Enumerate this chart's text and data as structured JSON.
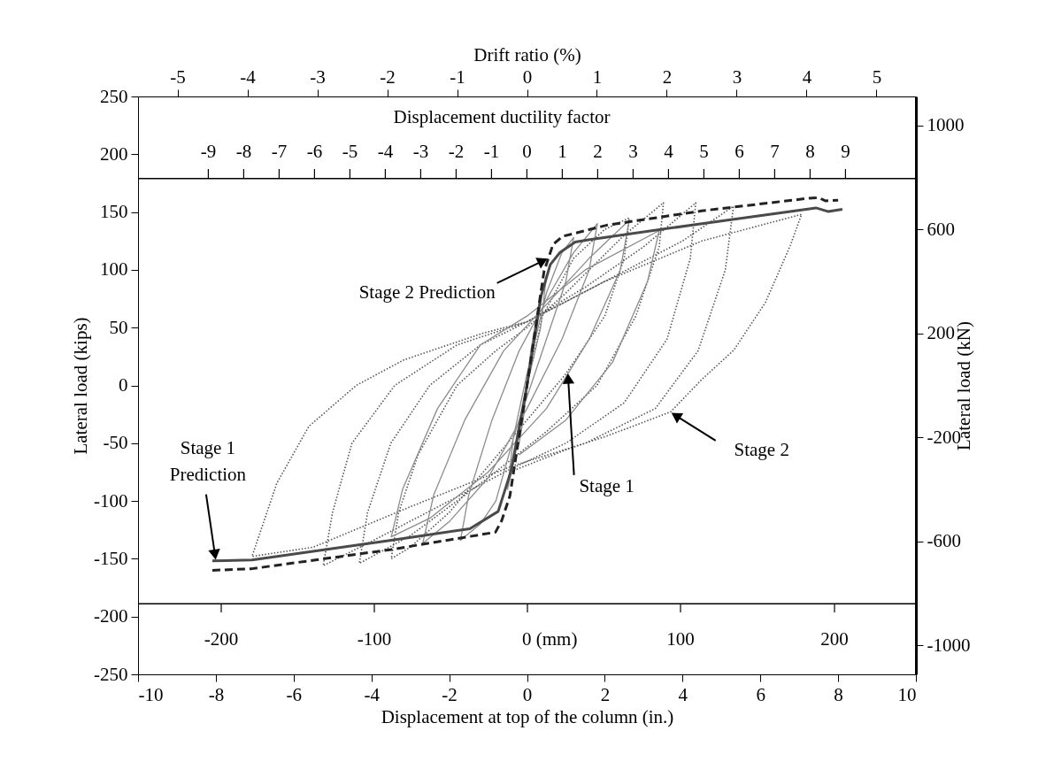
{
  "chart_data": {
    "type": "line",
    "xlabel": "Displacement at top of the column (in.)",
    "ylabel": "Lateral load (kips)",
    "y2label": "Lateral load (kN)",
    "x2label": "Drift ratio (%)",
    "xlim": [
      -10,
      10
    ],
    "xticks": [
      -10,
      -8,
      -6,
      -4,
      -2,
      0,
      2,
      4,
      6,
      8,
      10
    ],
    "ylim": [
      -250,
      250
    ],
    "yticks": [
      -250,
      -200,
      -150,
      -100,
      -50,
      0,
      50,
      100,
      150,
      200,
      250
    ],
    "y2lim": [
      -1112,
      1112
    ],
    "y2ticks": [
      -1000,
      -600,
      -200,
      200,
      600,
      1000
    ],
    "x2lim": [
      -5.565,
      5.565
    ],
    "x2ticks": [
      -5,
      -4,
      -3,
      -2,
      -1,
      0,
      1,
      2,
      3,
      4,
      5
    ],
    "marker": "none",
    "ref_lines": [
      {
        "axis": "y",
        "value": 179,
        "color": "#000000"
      },
      {
        "axis": "y",
        "value": -189,
        "color": "#000000"
      }
    ],
    "series": [
      {
        "line_style": "dotted",
        "color": "#555555",
        "x": [
          0,
          0.4,
          1.2,
          2.0,
          2.63,
          2.5,
          2.0,
          1.0,
          0,
          -1.0,
          -2.0,
          -3.0,
          -3.49,
          -3.3,
          -2.8,
          -1.8,
          -0.8,
          0,
          1.0,
          2.5,
          3.51,
          3.4,
          2.8,
          1.8,
          0.5,
          -1,
          -3,
          -4.31,
          -4.1,
          -3.5,
          -2.5,
          -1.2,
          0,
          1.5,
          3,
          4.34,
          4.2,
          3.6,
          2.5,
          1.0,
          -0.4,
          -2,
          -4,
          -5.24,
          -5.0,
          -4.5,
          -3.4,
          -1.8,
          0,
          2,
          4,
          5.31,
          5.1,
          4.4,
          3.3,
          1.5,
          -0.4,
          -3,
          -5.5,
          -7.07,
          -6.43,
          -5.61,
          -4.39,
          -3.17,
          -1.15,
          0,
          2,
          4.5,
          7.06,
          6.77,
          6.13,
          5.32,
          4.49,
          3.69,
          2.06,
          1.08,
          -0.37
        ],
        "values": [
          0,
          60,
          110,
          135,
          145,
          110,
          60,
          10,
          -30,
          -70,
          -110,
          -140,
          -150,
          -110,
          -60,
          0,
          30,
          50,
          80,
          130,
          158,
          120,
          60,
          0,
          -40,
          -80,
          -130,
          -154,
          -110,
          -50,
          0,
          35,
          55,
          85,
          120,
          158,
          110,
          40,
          -15,
          -50,
          -72,
          -100,
          -135,
          -156,
          -110,
          -50,
          0,
          35,
          55,
          90,
          125,
          155,
          100,
          30,
          -20,
          -50,
          -70,
          -105,
          -140,
          -148,
          -84.5,
          -35.5,
          0,
          22,
          45,
          55,
          90,
          125,
          148,
          121,
          71.7,
          30.6,
          5,
          -23,
          -43.7,
          -54.7,
          -74
        ]
      },
      {
        "line_style": "solid",
        "color": "#8c8c8c",
        "x": [
          0,
          0.1,
          0.2,
          0.05,
          -0.1,
          -0.2,
          -0.05,
          0.1,
          0.3,
          0.5,
          0.35,
          0,
          -0.3,
          -0.5,
          -0.35,
          0,
          0.5,
          0.9,
          1.2,
          1.0,
          0.4,
          -0.3,
          -0.8,
          -1.2,
          -1.71,
          -1.5,
          -0.9,
          -0.2,
          0.6,
          1.2,
          1.81,
          1.6,
          0.9,
          0,
          -1.0,
          -2.0,
          -2.68,
          -2.4,
          -1.6,
          -0.6,
          0.5,
          1.6,
          2.63,
          2.4,
          1.6,
          0.5,
          -1,
          -2.5,
          -3.49,
          -3.2,
          -2.3,
          -1.2,
          0,
          1.5,
          3.4,
          3.1,
          2.2,
          1.0,
          -0.2
        ],
        "values": [
          0,
          30,
          50,
          10,
          -30,
          -50,
          -10,
          30,
          70,
          95,
          50,
          0,
          -60,
          -90,
          -45,
          10,
          80,
          115,
          128,
          90,
          30,
          -40,
          -100,
          -120,
          -134,
          -95,
          -30,
          30,
          80,
          115,
          140,
          100,
          40,
          -20,
          -80,
          -118,
          -136.6,
          -95,
          -30,
          30,
          70,
          110,
          143,
          100,
          40,
          -20,
          -75,
          -115,
          -131,
          -90,
          -20,
          35,
          60,
          100,
          134,
          90,
          20,
          -30,
          -60
        ]
      },
      {
        "line_style": "solid",
        "color": "#4a4a4a",
        "x": [
          -8.09,
          -7.07,
          -3.49,
          -1.47,
          -0.74,
          -0.41,
          0,
          0.36,
          0.6,
          0.85,
          1.24,
          1.58,
          4.5,
          7.43,
          7.75,
          8.11
        ],
        "values": [
          -151.8,
          -151,
          -134,
          -124,
          -109,
          -74,
          0,
          77,
          104.6,
          115,
          124,
          126,
          140,
          153.6,
          150.4,
          152.4
        ]
      },
      {
        "line_style": "dashed",
        "color": "#222222",
        "x": [
          -8.09,
          -7.07,
          -3.49,
          -0.81,
          -0.65,
          -0.44,
          0,
          0.44,
          0.67,
          0.92,
          2.06,
          4.49,
          7.26,
          7.5,
          7.67,
          8.0
        ],
        "values": [
          -160,
          -158.6,
          -142,
          -127,
          -117,
          -95.7,
          0,
          99,
          122,
          129,
          138.7,
          151,
          162,
          162.5,
          159.7,
          160.2
        ]
      }
    ],
    "annotations": [
      {
        "text": "Stage 2 Prediction",
        "x": 0.55,
        "y": 110
      },
      {
        "text": "Stage 1\nPrediction",
        "x": -8.0,
        "y": -151.7
      },
      {
        "text": "Stage 1",
        "x": 1.05,
        "y": 11.2
      },
      {
        "text": "Stage 2",
        "x": 3.69,
        "y": -23.3
      },
      "Displacement ductility factor",
      "-9",
      "-8",
      "-7",
      "-6",
      "-5",
      "-4",
      "-3",
      "-2",
      "-1",
      "0",
      "1",
      "2",
      "3",
      "4",
      "5",
      "6",
      "7",
      "8",
      "9",
      "-200",
      "-100",
      "0 (mm)",
      "100",
      "200"
    ]
  }
}
